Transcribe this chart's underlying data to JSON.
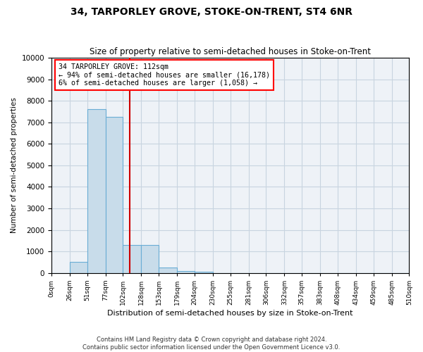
{
  "title": "34, TARPORLEY GROVE, STOKE-ON-TRENT, ST4 6NR",
  "subtitle": "Size of property relative to semi-detached houses in Stoke-on-Trent",
  "xlabel": "Distribution of semi-detached houses by size in Stoke-on-Trent",
  "ylabel": "Number of semi-detached properties",
  "annotation_title": "34 TARPORLEY GROVE: 112sqm",
  "annotation_line1": "← 94% of semi-detached houses are smaller (16,178)",
  "annotation_line2": "6% of semi-detached houses are larger (1,058) →",
  "property_size": 112,
  "bar_edges": [
    0,
    26,
    51,
    77,
    102,
    128,
    153,
    179,
    204,
    230,
    255,
    281,
    306,
    332,
    357,
    383,
    408,
    434,
    459,
    485,
    510
  ],
  "bar_heights": [
    0,
    520,
    7600,
    7250,
    1300,
    1300,
    250,
    100,
    50,
    0,
    0,
    0,
    0,
    0,
    0,
    0,
    0,
    0,
    0,
    0
  ],
  "bar_color": "#c8dcea",
  "bar_edge_color": "#6aadd5",
  "line_color": "#cc0000",
  "ylim": [
    0,
    10000
  ],
  "yticks": [
    0,
    1000,
    2000,
    3000,
    4000,
    5000,
    6000,
    7000,
    8000,
    9000,
    10000
  ],
  "xtick_labels": [
    "0sqm",
    "26sqm",
    "51sqm",
    "77sqm",
    "102sqm",
    "128sqm",
    "153sqm",
    "179sqm",
    "204sqm",
    "230sqm",
    "255sqm",
    "281sqm",
    "306sqm",
    "332sqm",
    "357sqm",
    "383sqm",
    "408sqm",
    "434sqm",
    "459sqm",
    "485sqm",
    "510sqm"
  ],
  "footer_line1": "Contains HM Land Registry data © Crown copyright and database right 2024.",
  "footer_line2": "Contains public sector information licensed under the Open Government Licence v3.0.",
  "background_color": "#eef2f7",
  "grid_color": "#c8d4e0"
}
